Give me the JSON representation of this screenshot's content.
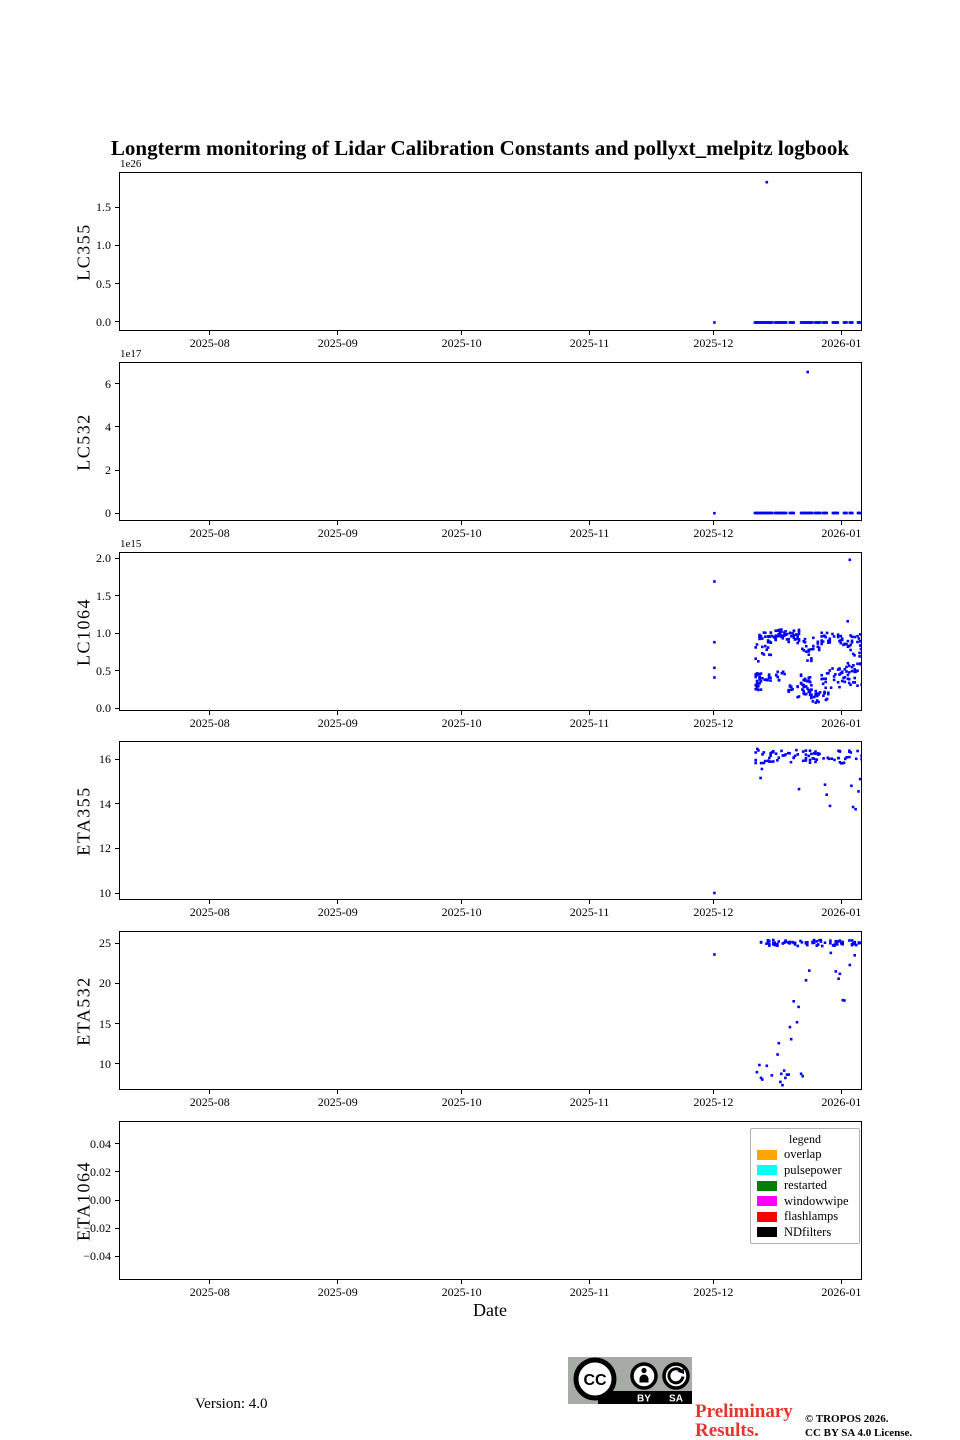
{
  "title": "Longterm monitoring of Lidar Calibration Constants and pollyxt_melpitz logbook",
  "xlabel": "Date",
  "colors": {
    "marker": "#0000ff",
    "preliminary_red": "#e5352d",
    "badge_gray": "#a7aba5"
  },
  "seed": 7,
  "x_axis": {
    "unit": "days relative to 2025-12-01",
    "range": [
      -144,
      36
    ],
    "ticks": [
      {
        "x": -122,
        "label": "2025-08"
      },
      {
        "x": -91,
        "label": "2025-09"
      },
      {
        "x": -61,
        "label": "2025-10"
      },
      {
        "x": -30,
        "label": "2025-11"
      },
      {
        "x": 0,
        "label": "2025-12"
      },
      {
        "x": 31,
        "label": "2026-01"
      }
    ]
  },
  "chart_data": [
    {
      "type": "scatter",
      "ylabel": "LC355",
      "offset": "1e26",
      "ylim": [
        -0.12,
        1.96
      ],
      "yticks": [
        [
          0.0,
          "0.0"
        ],
        [
          0.5,
          "0.5"
        ],
        [
          1.0,
          "1.0"
        ],
        [
          1.5,
          "1.5"
        ]
      ],
      "points": [
        [
          0,
          0.004
        ],
        [
          12.7,
          1.84
        ]
      ],
      "zero_value": 0.004,
      "zero_runs": [
        [
          9.8,
          14.2
        ],
        [
          14.7,
          17.6
        ],
        [
          18.3,
          19.3
        ],
        [
          21.0,
          23.9
        ],
        [
          24.4,
          25.8
        ],
        [
          26.3,
          27.3
        ],
        [
          28.7,
          30.2
        ],
        [
          31.4,
          32.1
        ],
        [
          32.8,
          33.6
        ],
        [
          34.8,
          36.0
        ]
      ],
      "clusters": []
    },
    {
      "type": "scatter",
      "ylabel": "LC532",
      "offset": "1e17",
      "ylim": [
        -0.37,
        7.02
      ],
      "yticks": [
        [
          0,
          "0"
        ],
        [
          2,
          "2"
        ],
        [
          4,
          "4"
        ],
        [
          6,
          "6"
        ]
      ],
      "points": [
        [
          0,
          0.04
        ],
        [
          22.6,
          6.6
        ]
      ],
      "zero_value": 0.05,
      "zero_runs": [
        [
          9.8,
          14.2
        ],
        [
          14.7,
          17.6
        ],
        [
          18.3,
          19.3
        ],
        [
          21.0,
          23.9
        ],
        [
          24.4,
          25.8
        ],
        [
          26.3,
          27.3
        ],
        [
          28.7,
          30.2
        ],
        [
          31.4,
          32.1
        ],
        [
          32.8,
          33.6
        ],
        [
          34.8,
          36.0
        ]
      ],
      "clusters": []
    },
    {
      "type": "scatter",
      "ylabel": "LC1064",
      "offset": "1e15",
      "ylim": [
        -0.04,
        2.08
      ],
      "yticks": [
        [
          0.0,
          "0.0"
        ],
        [
          0.5,
          "0.5"
        ],
        [
          1.0,
          "1.0"
        ],
        [
          1.5,
          "1.5"
        ],
        [
          2.0,
          "2.0"
        ]
      ],
      "points": [
        [
          0,
          1.7
        ],
        [
          0,
          0.89
        ],
        [
          0,
          0.55
        ],
        [
          0,
          0.42
        ],
        [
          32.8,
          1.99
        ],
        [
          32.3,
          1.17
        ]
      ],
      "zero_value": null,
      "zero_runs": [],
      "clusters": [
        [
          10.0,
          11.6,
          0.25,
          0.48,
          26
        ],
        [
          10.0,
          11.6,
          0.62,
          1.0,
          12
        ],
        [
          12.0,
          14.0,
          0.72,
          1.02,
          20
        ],
        [
          12.2,
          13.6,
          0.3,
          0.46,
          8
        ],
        [
          14.5,
          17.6,
          0.92,
          1.06,
          30
        ],
        [
          15.0,
          17.0,
          0.34,
          0.5,
          10
        ],
        [
          18.0,
          20.5,
          0.88,
          1.06,
          22
        ],
        [
          18.0,
          20.5,
          0.15,
          0.36,
          12
        ],
        [
          21.0,
          23.5,
          0.18,
          0.46,
          32
        ],
        [
          21.0,
          23.5,
          0.62,
          0.95,
          14
        ],
        [
          23.5,
          25.6,
          0.05,
          0.25,
          20
        ],
        [
          23.6,
          25.4,
          0.78,
          0.96,
          8
        ],
        [
          26.0,
          28.6,
          0.84,
          1.02,
          16
        ],
        [
          26.0,
          28.6,
          0.28,
          0.55,
          12
        ],
        [
          26.4,
          27.6,
          0.08,
          0.25,
          8
        ],
        [
          29.0,
          31.6,
          0.28,
          0.55,
          18
        ],
        [
          29.0,
          31.6,
          0.84,
          1.0,
          12
        ],
        [
          32.0,
          36.0,
          0.3,
          0.62,
          26
        ],
        [
          32.0,
          36.0,
          0.82,
          1.0,
          18
        ],
        [
          33.0,
          35.5,
          0.62,
          0.8,
          6
        ]
      ]
    },
    {
      "type": "scatter",
      "ylabel": "ETA355",
      "offset": null,
      "ylim": [
        9.69,
        16.81
      ],
      "yticks": [
        [
          10,
          "10"
        ],
        [
          12,
          "12"
        ],
        [
          14,
          "14"
        ],
        [
          16,
          "16"
        ]
      ],
      "points": [
        [
          0,
          10.05
        ],
        [
          10.4,
          16.5
        ],
        [
          11.2,
          15.2
        ],
        [
          11.5,
          15.6
        ],
        [
          20.5,
          14.7
        ],
        [
          26.8,
          14.9
        ],
        [
          27.2,
          14.45
        ],
        [
          28.0,
          13.95
        ],
        [
          33.2,
          14.85
        ],
        [
          33.6,
          13.9
        ],
        [
          34.2,
          13.8
        ],
        [
          34.9,
          14.6
        ],
        [
          35.3,
          15.15
        ]
      ],
      "zero_value": null,
      "zero_runs": [],
      "clusters": [
        [
          10.0,
          36.0,
          15.85,
          16.45,
          80
        ]
      ]
    },
    {
      "type": "scatter",
      "ylabel": "ETA532",
      "offset": null,
      "ylim": [
        6.77,
        26.49
      ],
      "yticks": [
        [
          10,
          "10"
        ],
        [
          15,
          "15"
        ],
        [
          20,
          "20"
        ],
        [
          25,
          "25"
        ]
      ],
      "points": [
        [
          0,
          23.7
        ],
        [
          10.3,
          9.1
        ],
        [
          10.9,
          10.0
        ],
        [
          11.3,
          8.4
        ],
        [
          11.6,
          8.2
        ],
        [
          12.7,
          9.9
        ],
        [
          13.9,
          8.7
        ],
        [
          15.3,
          11.3
        ],
        [
          15.6,
          12.7
        ],
        [
          16.0,
          7.9
        ],
        [
          16.2,
          8.9
        ],
        [
          16.5,
          7.5
        ],
        [
          16.9,
          9.3
        ],
        [
          17.2,
          8.4
        ],
        [
          17.6,
          8.8
        ],
        [
          18.0,
          8.8
        ],
        [
          18.3,
          14.7
        ],
        [
          18.6,
          13.2
        ],
        [
          19.2,
          17.9
        ],
        [
          20.0,
          15.3
        ],
        [
          20.4,
          17.2
        ],
        [
          21.0,
          8.9
        ],
        [
          21.4,
          8.6
        ],
        [
          22.2,
          20.5
        ],
        [
          23.0,
          21.7
        ],
        [
          28.2,
          23.9
        ],
        [
          29.4,
          21.6
        ],
        [
          30.1,
          20.7
        ],
        [
          30.4,
          21.3
        ],
        [
          31.1,
          18.05
        ],
        [
          31.5,
          18.0
        ],
        [
          32.8,
          22.4
        ],
        [
          34.0,
          23.6
        ]
      ],
      "zero_value": null,
      "zero_runs": [],
      "clusters": [
        [
          10.0,
          36.0,
          24.75,
          25.5,
          80
        ]
      ]
    },
    {
      "type": "scatter",
      "ylabel": "ETA1064",
      "offset": null,
      "ylim": [
        -0.0567,
        0.056
      ],
      "yticks": [
        [
          -0.04,
          "−0.04"
        ],
        [
          -0.02,
          "−0.02"
        ],
        [
          0.0,
          "0.00"
        ],
        [
          0.02,
          "0.02"
        ],
        [
          0.04,
          "0.04"
        ]
      ],
      "points": [],
      "zero_value": null,
      "zero_runs": [],
      "clusters": []
    }
  ],
  "legend": {
    "title": "legend",
    "entries": [
      {
        "label": "overlap",
        "color": "#FFA500"
      },
      {
        "label": "pulsepower",
        "color": "#00FFFF"
      },
      {
        "label": "restarted",
        "color": "#008000"
      },
      {
        "label": "windowwipe",
        "color": "#FF00FF"
      },
      {
        "label": "flashlamps",
        "color": "#FF0000"
      },
      {
        "label": "NDfilters",
        "color": "#000000"
      }
    ]
  },
  "footer": {
    "version": "Version: 4.0",
    "preliminary_line1": "Preliminary",
    "preliminary_line2": "Results.",
    "copyright_line1": "© TROPOS 2026.",
    "copyright_line2": "CC BY SA 4.0 License.",
    "badge": {
      "cc": "CC",
      "by": "BY",
      "sa": "SA"
    }
  }
}
